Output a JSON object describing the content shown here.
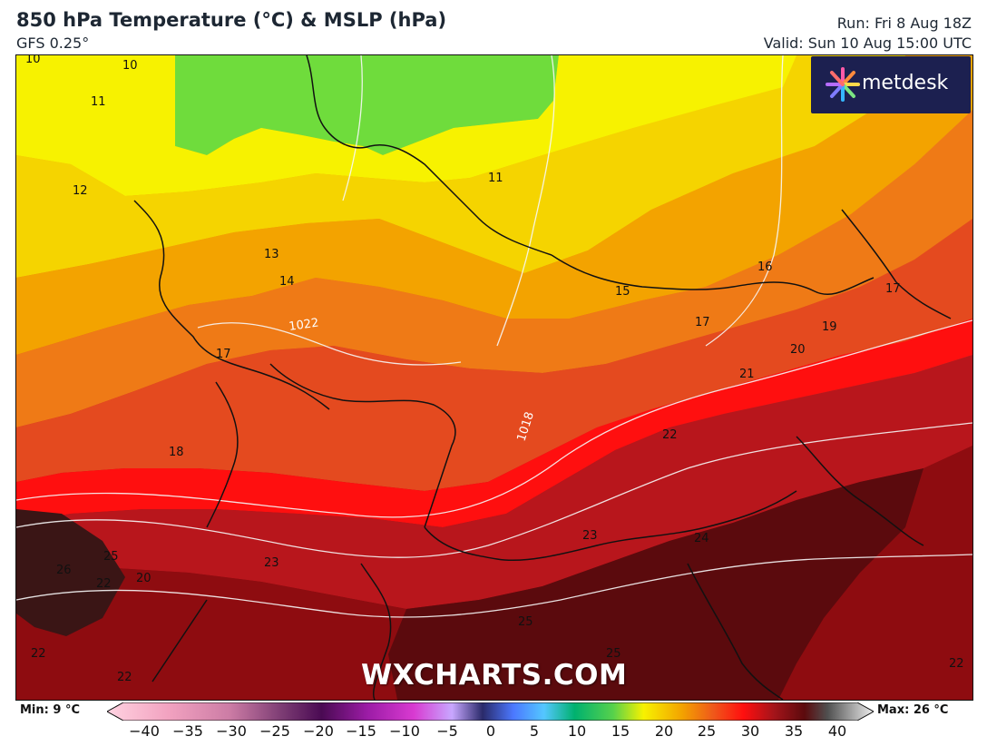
{
  "header": {
    "title": "850 hPa Temperature (°C) & MSLP (hPa)",
    "model": "GFS 0.25°",
    "run": "Run: Fri 8 Aug 18Z",
    "valid": "Valid: Sun 10 Aug 15:00 UTC"
  },
  "brand": {
    "logo_text": "metdesk",
    "watermark": "WXCHARTS.COM",
    "logo_bg": "#1c2050"
  },
  "legend": {
    "min_label": "Min: 9 °C",
    "max_label": "Max: 26 °C",
    "ticks": [
      "−40",
      "−35",
      "−30",
      "−25",
      "−20",
      "−15",
      "−10",
      "−5",
      "0",
      "5",
      "10",
      "15",
      "20",
      "25",
      "30",
      "35",
      "40"
    ],
    "colors": {
      "9": "#6fdc3c",
      "10": "#f7f200",
      "12": "#f5d400",
      "14": "#f3a300",
      "16": "#ef7a16",
      "18": "#e44a1f",
      "20": "#ff0f0f",
      "22": "#b8161c",
      "24": "#8e0c10",
      "26": "#5b0a0d"
    }
  },
  "map": {
    "temperature_labels": [
      "10",
      "10",
      "11",
      "11",
      "12",
      "13",
      "14",
      "15",
      "16",
      "17",
      "17",
      "17",
      "18",
      "19",
      "20",
      "21",
      "22",
      "23",
      "23",
      "24",
      "25",
      "25",
      "20",
      "22",
      "22",
      "22",
      "22",
      "25",
      "26"
    ],
    "pressure_labels": [
      "1022",
      "1018"
    ]
  }
}
